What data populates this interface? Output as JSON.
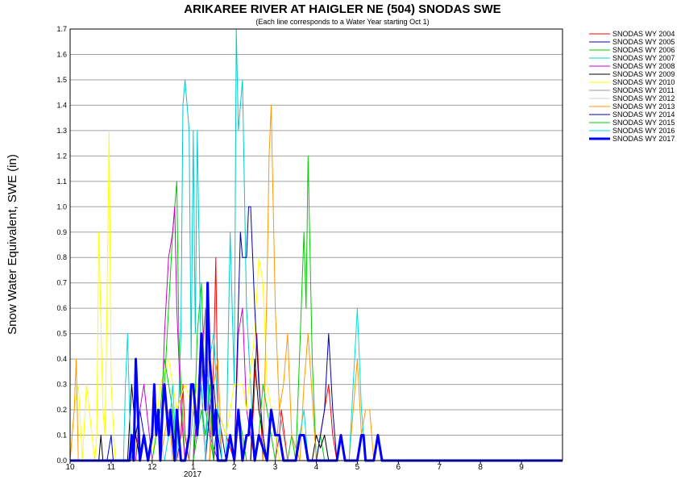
{
  "chart_data": {
    "type": "line",
    "title": "ARIKAREE RIVER AT HAIGLER NE (504) SNODAS SWE",
    "subtitle": "(Each line corresponds to a Water Year starting Oct 1)",
    "ylabel": "Snow Water Equivalent, SWE (in)",
    "xlabel_year": "2017",
    "ylim": [
      0,
      1.7
    ],
    "yticks": [
      "0.0",
      "0.1",
      "0.2",
      "0.3",
      "0.4",
      "0.5",
      "0.6",
      "0.7",
      "0.8",
      "0.9",
      "1.0",
      "1.1",
      "1.2",
      "1.3",
      "1.4",
      "1.5",
      "1.6",
      "1.7"
    ],
    "xlim": [
      0,
      12
    ],
    "xticks": [
      {
        "value": 0,
        "label": "10"
      },
      {
        "value": 1,
        "label": "11"
      },
      {
        "value": 2,
        "label": "12"
      },
      {
        "value": 3,
        "label": "1"
      },
      {
        "value": 4,
        "label": "2"
      },
      {
        "value": 5,
        "label": "3"
      },
      {
        "value": 6,
        "label": "4"
      },
      {
        "value": 7,
        "label": "5"
      },
      {
        "value": 8,
        "label": "6"
      },
      {
        "value": 9,
        "label": "7"
      },
      {
        "value": 10,
        "label": "8"
      },
      {
        "value": 11,
        "label": "9"
      }
    ],
    "grid": true,
    "legend_position": "top-right",
    "series": [
      {
        "name": "SNODAS WY 2004",
        "color": "#ff0000",
        "bold": false,
        "x": [
          0,
          2.6,
          2.7,
          2.75,
          2.8,
          2.9,
          3.4,
          3.5,
          3.55,
          3.6,
          4.0,
          4.4,
          4.5,
          4.55,
          4.7,
          5.0,
          5.1,
          5.15,
          5.3,
          6.0,
          6.3,
          6.4,
          6.5,
          12
        ],
        "y": [
          0,
          0,
          0.1,
          0.3,
          0.1,
          0,
          0,
          0.4,
          0.8,
          0.2,
          0,
          0,
          0.3,
          0.5,
          0,
          0,
          0.1,
          0.2,
          0,
          0,
          0.3,
          0.1,
          0,
          0
        ]
      },
      {
        "name": "SNODAS WY 2005",
        "color": "#0000cc",
        "bold": false,
        "x": [
          0,
          0.9,
          1.0,
          1.05,
          1.1,
          1.5,
          1.6,
          1.7,
          1.8,
          1.9,
          2.0,
          3.0,
          3.1,
          3.2,
          3.3,
          3.5,
          3.6,
          3.7,
          3.8,
          4.0,
          12
        ],
        "y": [
          0,
          0,
          0.1,
          0,
          0,
          0,
          0.1,
          0.2,
          0.1,
          0,
          0,
          0,
          0.2,
          0.3,
          0,
          0,
          0.2,
          0.1,
          0,
          0,
          0
        ]
      },
      {
        "name": "SNODAS WY 2006",
        "color": "#00cc00",
        "bold": false,
        "x": [
          0,
          2.2,
          2.3,
          2.4,
          2.5,
          2.6,
          2.65,
          2.7,
          2.8,
          3.0,
          3.1,
          3.2,
          3.3,
          3.5,
          4.0,
          4.1,
          4.2,
          4.3,
          5.0,
          5.3,
          5.4,
          5.5,
          5.7,
          5.75,
          5.8,
          5.9,
          6.0,
          6.1,
          6.2,
          12
        ],
        "y": [
          0,
          0,
          0.3,
          0.6,
          0.9,
          1.1,
          0.5,
          0.3,
          0,
          0,
          0.5,
          0.7,
          0.2,
          0,
          0,
          0.2,
          0.1,
          0,
          0,
          0,
          0.1,
          0,
          0.9,
          0.6,
          1.2,
          0.4,
          0,
          0.1,
          0,
          0
        ]
      },
      {
        "name": "SNODAS WY 2007",
        "color": "#00cccc",
        "bold": false,
        "x": [
          0,
          2.6,
          2.7,
          2.75,
          2.8,
          2.9,
          2.95,
          3.0,
          3.05,
          3.1,
          3.2,
          3.3,
          3.5,
          3.8,
          3.9,
          4.0,
          4.05,
          4.1,
          4.2,
          4.3,
          4.5,
          5.0,
          12
        ],
        "y": [
          0,
          0,
          0.5,
          1.4,
          1.5,
          1.3,
          0.4,
          1.3,
          0.5,
          1.3,
          0.3,
          0,
          0,
          0,
          0.9,
          0.3,
          1.7,
          1.3,
          1.5,
          0.6,
          0,
          0,
          0
        ]
      },
      {
        "name": "SNODAS WY 2008",
        "color": "#cc00cc",
        "bold": false,
        "x": [
          0,
          1.6,
          1.7,
          1.8,
          2.0,
          2.2,
          2.3,
          2.4,
          2.5,
          2.55,
          2.6,
          2.7,
          2.8,
          3.0,
          3.2,
          3.3,
          3.4,
          3.6,
          4.0,
          4.1,
          4.2,
          4.3,
          4.5,
          12
        ],
        "y": [
          0,
          0,
          0.2,
          0.3,
          0,
          0,
          0.5,
          0.8,
          0.9,
          1.0,
          0.6,
          0.2,
          0,
          0,
          0.4,
          0.6,
          0.1,
          0,
          0,
          0.5,
          0.6,
          0.2,
          0,
          0
        ]
      },
      {
        "name": "SNODAS WY 2009",
        "color": "#000000",
        "bold": false,
        "x": [
          0,
          0.7,
          0.75,
          0.8,
          1.4,
          1.5,
          1.6,
          1.7,
          2.0,
          4.4,
          4.5,
          4.6,
          4.7,
          4.8,
          5.0,
          5.9,
          6.0,
          6.1,
          6.2,
          6.3,
          6.4,
          12
        ],
        "y": [
          0,
          0,
          0.1,
          0,
          0,
          0.3,
          0.1,
          0,
          0,
          0,
          0.4,
          0.2,
          0.1,
          0,
          0,
          0,
          0.1,
          0.05,
          0.1,
          0,
          0,
          0
        ]
      },
      {
        "name": "SNODAS WY 2010",
        "color": "#ffff00",
        "bold": false,
        "x": [
          0,
          0.1,
          0.2,
          0.3,
          0.4,
          0.6,
          0.65,
          0.7,
          0.8,
          0.85,
          0.9,
          0.95,
          1.0,
          1.1,
          2.0,
          2.2,
          2.4,
          2.6,
          2.8,
          3.0,
          3.2,
          3.4,
          3.6,
          3.8,
          4.0,
          4.2,
          4.3,
          4.5,
          4.6,
          4.7,
          4.8,
          4.9,
          5.0,
          5.1,
          5.3,
          12
        ],
        "y": [
          0,
          0.2,
          0.3,
          0,
          0.3,
          0,
          0.1,
          0.9,
          0.2,
          0.1,
          0.6,
          1.3,
          0.3,
          0,
          0,
          0.3,
          0.4,
          0.2,
          0.3,
          0.2,
          0.4,
          0.3,
          0.2,
          0.1,
          0.3,
          0.3,
          0.2,
          0.5,
          0.8,
          0.7,
          0.3,
          0.2,
          0.1,
          0,
          0,
          0
        ]
      },
      {
        "name": "SNODAS WY 2011",
        "color": "#999999",
        "bold": false,
        "x": [
          0,
          2.9,
          3.0,
          3.1,
          3.2,
          3.3,
          3.4,
          3.5,
          4.0,
          5.0,
          5.1,
          5.2,
          5.3,
          6.0,
          12
        ],
        "y": [
          0,
          0,
          0.2,
          0.1,
          0.3,
          0.6,
          0.2,
          0,
          0,
          0,
          0.2,
          0.1,
          0,
          0,
          0
        ]
      },
      {
        "name": "SNODAS WY 2012",
        "color": "#cccccc",
        "bold": false,
        "x": [
          0,
          1.9,
          2.0,
          2.1,
          2.2,
          2.3,
          3.0,
          3.1,
          3.2,
          3.3,
          4.0,
          12
        ],
        "y": [
          0,
          0,
          0.1,
          0.2,
          0.1,
          0,
          0,
          0.1,
          0.2,
          0,
          0,
          0
        ]
      },
      {
        "name": "SNODAS WY 2013",
        "color": "#ff9900",
        "bold": false,
        "x": [
          0,
          0.1,
          0.15,
          0.2,
          0.4,
          2.2,
          2.3,
          2.4,
          2.5,
          3.4,
          3.5,
          3.6,
          3.7,
          4.7,
          4.8,
          4.85,
          4.9,
          5.0,
          5.1,
          5.2,
          5.3,
          5.4,
          5.6,
          5.7,
          5.8,
          6.0,
          6.8,
          6.9,
          7.0,
          7.1,
          7.2,
          7.3,
          7.4,
          7.5,
          8.0,
          12
        ],
        "y": [
          0,
          0.2,
          0.4,
          0,
          0,
          0,
          0.1,
          0.2,
          0,
          0,
          0.3,
          0.4,
          0,
          0,
          0.7,
          1.2,
          1.4,
          0.6,
          0.2,
          0.3,
          0.5,
          0.1,
          0,
          0.3,
          0.5,
          0,
          0,
          0.2,
          0.4,
          0.1,
          0.2,
          0.2,
          0,
          0,
          0,
          0
        ]
      },
      {
        "name": "SNODAS WY 2014",
        "color": "#0000aa",
        "bold": false,
        "x": [
          0,
          3.3,
          3.4,
          3.5,
          3.6,
          3.7,
          4.0,
          4.1,
          4.15,
          4.2,
          4.3,
          4.35,
          4.4,
          4.5,
          4.6,
          4.7,
          4.8,
          5.0,
          6.0,
          6.2,
          6.3,
          6.4,
          6.5,
          12
        ],
        "y": [
          0,
          0,
          0.2,
          0.3,
          0.1,
          0,
          0,
          0.6,
          0.9,
          0.8,
          0.8,
          1.0,
          1.0,
          0.6,
          0.3,
          0.1,
          0,
          0,
          0,
          0.2,
          0.5,
          0.2,
          0,
          0
        ]
      },
      {
        "name": "SNODAS WY 2015",
        "color": "#00cc00",
        "bold": false,
        "x": [
          0,
          2.0,
          2.1,
          2.2,
          2.3,
          2.4,
          2.5,
          2.6,
          3.0,
          3.1,
          3.2,
          3.3,
          3.4,
          3.5,
          3.7,
          4.0,
          4.5,
          4.6,
          4.7,
          4.8,
          4.9,
          5.0,
          12
        ],
        "y": [
          0,
          0,
          0.1,
          0.2,
          0.4,
          0.3,
          0.2,
          0,
          0,
          0.1,
          0.2,
          0.1,
          0.3,
          0,
          0,
          0,
          0,
          0.1,
          0.3,
          0.2,
          0.1,
          0,
          0
        ]
      },
      {
        "name": "SNODAS WY 2016",
        "color": "#00dddd",
        "bold": false,
        "x": [
          0,
          1.3,
          1.35,
          1.4,
          1.45,
          1.5,
          1.6,
          2.0,
          2.3,
          2.4,
          2.5,
          2.6,
          3.0,
          3.3,
          3.4,
          3.5,
          3.6,
          3.7,
          4.0,
          5.5,
          5.6,
          5.7,
          5.8,
          6.0,
          6.8,
          6.9,
          7.0,
          7.1,
          7.2,
          12
        ],
        "y": [
          0,
          0,
          0.3,
          0.5,
          0.2,
          0,
          0,
          0,
          0,
          0.1,
          0.3,
          0,
          0,
          0,
          0.4,
          0.5,
          0.2,
          0,
          0,
          0,
          0.1,
          0.2,
          0,
          0,
          0,
          0.3,
          0.6,
          0.2,
          0,
          0
        ]
      },
      {
        "name": "SNODAS WY 2017",
        "color": "#0000ff",
        "bold": true,
        "x": [
          0,
          1.45,
          1.5,
          1.55,
          1.6,
          1.65,
          1.7,
          1.8,
          1.9,
          2.0,
          2.05,
          2.1,
          2.15,
          2.2,
          2.25,
          2.3,
          2.35,
          2.4,
          2.45,
          2.5,
          2.55,
          2.6,
          2.65,
          2.7,
          2.8,
          2.9,
          2.95,
          3.0,
          3.05,
          3.1,
          3.15,
          3.2,
          3.3,
          3.35,
          3.4,
          3.45,
          3.5,
          3.55,
          3.6,
          3.7,
          3.8,
          3.9,
          4.0,
          4.1,
          4.15,
          4.2,
          4.3,
          4.35,
          4.4,
          4.5,
          4.6,
          4.8,
          4.9,
          5.0,
          5.1,
          5.2,
          5.5,
          5.6,
          5.7,
          5.8,
          6.0,
          6.5,
          6.6,
          6.7,
          7.0,
          7.1,
          7.15,
          7.2,
          7.4,
          7.5,
          7.6,
          12
        ],
        "y": [
          0,
          0,
          0.1,
          0,
          0.4,
          0.2,
          0,
          0.1,
          0,
          0.1,
          0.3,
          0.1,
          0.2,
          0,
          0.2,
          0.3,
          0.2,
          0.1,
          0.2,
          0.1,
          0,
          0.2,
          0.1,
          0,
          0,
          0.1,
          0.3,
          0.3,
          0.2,
          0.1,
          0.3,
          0.5,
          0.2,
          0.7,
          0.4,
          0.3,
          0.1,
          0.2,
          0,
          0,
          0,
          0.1,
          0,
          0.2,
          0.1,
          0,
          0.1,
          0.1,
          0.2,
          0,
          0.1,
          0,
          0.2,
          0.1,
          0.1,
          0,
          0,
          0.1,
          0.1,
          0,
          0,
          0,
          0.1,
          0,
          0,
          0.1,
          0.1,
          0,
          0,
          0.1,
          0,
          0
        ]
      }
    ]
  }
}
